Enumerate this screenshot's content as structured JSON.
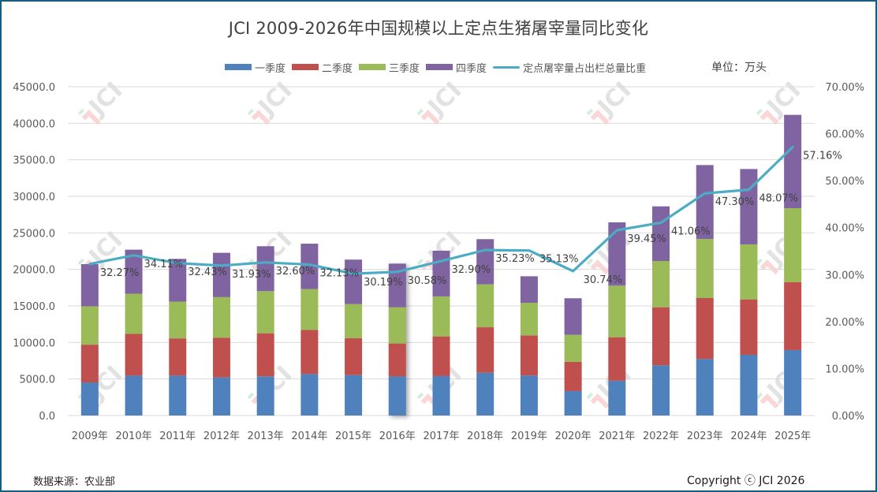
{
  "chart_data": {
    "type": "bar",
    "stacked": true,
    "title": "JCI  2009-2026年中国规模以上定点生猪屠宰量同比变化",
    "unit_label": "单位：万头",
    "xlabel": "",
    "ylabel": "",
    "y2label": "",
    "categories": [
      "2009年",
      "2010年",
      "2011年",
      "2012年",
      "2013年",
      "2014年",
      "2015年",
      "2016年",
      "2017年",
      "2018年",
      "2019年",
      "2020年",
      "2021年",
      "2022年",
      "2023年",
      "2024年",
      "2025年"
    ],
    "ylim": [
      0,
      45000
    ],
    "yticks": [
      "0.0",
      "5000.0",
      "10000.0",
      "15000.0",
      "20000.0",
      "25000.0",
      "30000.0",
      "35000.0",
      "40000.0",
      "45000.0"
    ],
    "y2lim": [
      0,
      70
    ],
    "y2ticks": [
      "0.00%",
      "10.00%",
      "20.00%",
      "30.00%",
      "40.00%",
      "50.00%",
      "60.00%",
      "70.00%"
    ],
    "grid": true,
    "legend_position": "top",
    "series": [
      {
        "name": "一季度",
        "type": "bar",
        "color": "#4f81bd",
        "values": [
          4530,
          5460,
          5460,
          5210,
          5360,
          5680,
          5540,
          5360,
          5400,
          5860,
          5470,
          3350,
          4760,
          6870,
          7730,
          8310,
          8960
        ]
      },
      {
        "name": "二季度",
        "type": "bar",
        "color": "#c0504d",
        "values": [
          5170,
          5710,
          5100,
          5420,
          5900,
          6040,
          5040,
          4500,
          5430,
          6220,
          5500,
          3990,
          5960,
          7950,
          8350,
          7590,
          9280
        ]
      },
      {
        "name": "三季度",
        "type": "bar",
        "color": "#9bbb59",
        "values": [
          5240,
          5500,
          5030,
          5570,
          5760,
          5580,
          4680,
          4960,
          5470,
          5870,
          4460,
          3710,
          7050,
          6330,
          8090,
          7520,
          10140
        ]
      },
      {
        "name": "四季度",
        "type": "bar",
        "color": "#8064a2",
        "values": [
          5780,
          6030,
          5850,
          6070,
          6150,
          6220,
          6080,
          5970,
          6260,
          6190,
          3630,
          5000,
          8670,
          7480,
          10110,
          10320,
          12770
        ]
      },
      {
        "name": "定点屠宰量占出栏总量比重",
        "type": "line",
        "axis": "right",
        "color": "#4bacc6",
        "values": [
          32.27,
          34.11,
          32.43,
          31.93,
          32.6,
          32.13,
          30.19,
          30.58,
          32.9,
          35.23,
          35.13,
          30.74,
          39.45,
          41.06,
          47.3,
          48.07,
          57.16
        ],
        "labels": [
          "32.27%",
          "34.11%",
          "32.43%",
          "31.93%",
          "32.60%",
          "32.13%",
          "30.19%",
          "30.58%",
          "32.90%",
          "35.23%",
          "35.13%",
          "30.74%",
          "39.45%",
          "41.06%",
          "47.30%",
          "48.07%",
          "57.16%"
        ]
      }
    ]
  },
  "footer": {
    "source": "数据来源：农业部",
    "copyright": "Copyright ⓒ JCI 2026"
  }
}
